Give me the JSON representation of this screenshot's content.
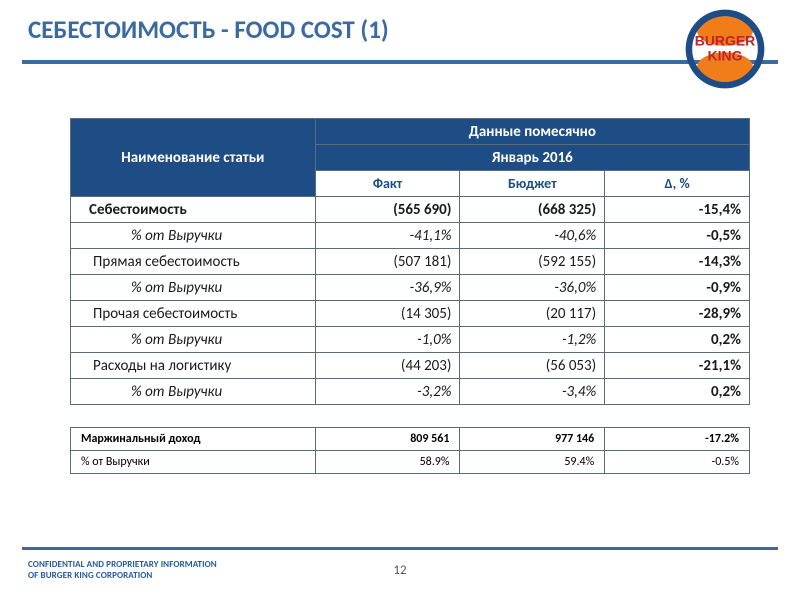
{
  "title": "СЕБЕСТОИМОСТЬ - FOOD COST (1)",
  "logo": {
    "top_text": "BURGER",
    "bottom_text": "KING",
    "bun_color": "#f07d1a",
    "ring_color": "#1d4d84",
    "text_color": "#c0222a"
  },
  "header": {
    "name_col": "Наименование статьи",
    "monthly": "Данные помесячно",
    "period": "Январь 2016",
    "fact": "Факт",
    "budget": "Бюджет",
    "delta": "Δ, %"
  },
  "rows": [
    {
      "kind": "bold",
      "name": "Себестоимость",
      "fact": "(565 690)",
      "budget": "(668 325)",
      "delta": "-15,4%"
    },
    {
      "kind": "pct",
      "name": "% от Выручки",
      "fact": "-41,1%",
      "budget": "-40,6%",
      "delta": "-0,5%"
    },
    {
      "kind": "reg",
      "name": "Прямая себестоимость",
      "fact": "(507 181)",
      "budget": "(592 155)",
      "delta": "-14,3%"
    },
    {
      "kind": "pct",
      "name": "% от Выручки",
      "fact": "-36,9%",
      "budget": "-36,0%",
      "delta": "-0,9%"
    },
    {
      "kind": "reg",
      "name": "Прочая себестоимость",
      "fact": "(14 305)",
      "budget": "(20 117)",
      "delta": "-28,9%"
    },
    {
      "kind": "pct",
      "name": "% от Выручки",
      "fact": "-1,0%",
      "budget": "-1,2%",
      "delta": "0,2%"
    },
    {
      "kind": "reg",
      "name": "Расходы на логистику",
      "fact": "(44 203)",
      "budget": "(56 053)",
      "delta": "-21,1%"
    },
    {
      "kind": "pct",
      "name": "% от Выручки",
      "fact": "-3,2%",
      "budget": "-3,4%",
      "delta": "0,2%"
    }
  ],
  "margin_rows": [
    {
      "kind": "mbold",
      "name": "Маржинальный доход",
      "fact": "809 561",
      "budget": "977 146",
      "delta": "-17.2%"
    },
    {
      "kind": "mreg",
      "name": "% от Выручки",
      "fact": "58.9%",
      "budget": "59.4%",
      "delta": "-0.5%"
    }
  ],
  "confidential_line1": "CONFIDENTIAL AND PROPRIETARY INFORMATION",
  "confidential_line2": "OF BURGER KING CORPORATION",
  "page_number": "12"
}
